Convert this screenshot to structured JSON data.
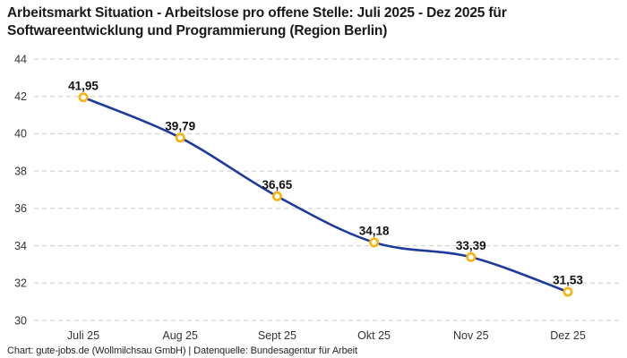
{
  "header": {
    "title_line1": "Arbeitsmarkt Situation - Arbeitslose pro offene Stelle: Juli 2025 - Dez 2025 für",
    "title_line2": "Softwareentwicklung und Programmierung (Region Berlin)"
  },
  "chart_data": {
    "type": "line",
    "title": "Arbeitsmarkt Situation - Arbeitslose pro offene Stelle: Juli 2025 - Dez 2025 für Softwareentwicklung und Programmierung (Region Berlin)",
    "categories": [
      "Juli 25",
      "Aug 25",
      "Sept 25",
      "Okt 25",
      "Nov 25",
      "Dez 25"
    ],
    "values": [
      41.95,
      39.79,
      36.65,
      34.18,
      33.39,
      31.53
    ],
    "value_labels": [
      "41,95",
      "39,79",
      "36,65",
      "34,18",
      "33,39",
      "31,53"
    ],
    "xlabel": "",
    "ylabel": "",
    "ylim": [
      30,
      44
    ],
    "yticks": [
      44,
      42,
      40,
      38,
      36,
      34,
      32,
      30
    ],
    "grid": "horizontal-dashed",
    "legend": "none",
    "line_color": "#1f3a9d",
    "marker_ring_color": "#f6b40d",
    "marker_fill_color": "#ffffff",
    "grid_color": "#c9c9c9",
    "tick_label_color": "#333333",
    "data_label_color": "#111111"
  },
  "footer": {
    "text": "Chart: gute-jobs.de (Wollmilchsau GmbH) | Datenquelle: Bundesagentur für Arbeit"
  }
}
